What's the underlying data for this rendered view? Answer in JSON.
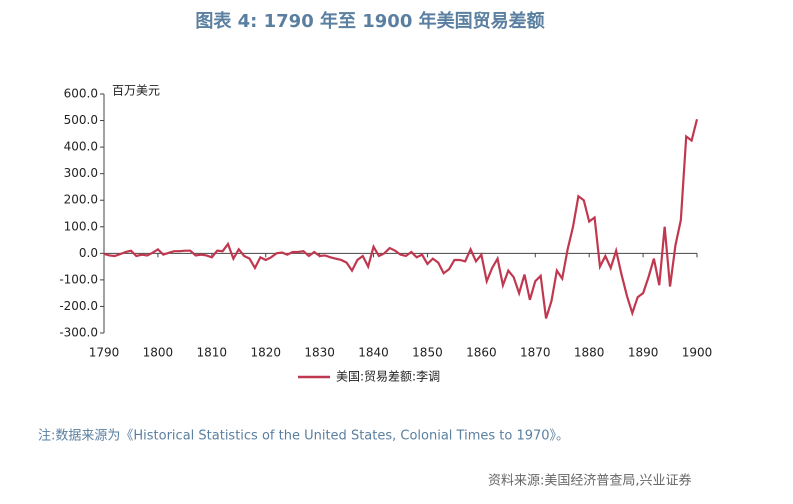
{
  "chart_data": {
    "type": "line",
    "title": "图表 4:  1790 年至 1900 年美国贸易差额",
    "y_label": "百万美元",
    "note": "注:数据来源为《Historical Statistics of the United States, Colonial Times to 1970》。",
    "source": "资料来源:美国经济普查局,兴业证券",
    "x": [
      1790,
      1791,
      1792,
      1793,
      1794,
      1795,
      1796,
      1797,
      1798,
      1799,
      1800,
      1801,
      1802,
      1803,
      1804,
      1805,
      1806,
      1807,
      1808,
      1809,
      1810,
      1811,
      1812,
      1813,
      1814,
      1815,
      1816,
      1817,
      1818,
      1819,
      1820,
      1821,
      1822,
      1823,
      1824,
      1825,
      1826,
      1827,
      1828,
      1829,
      1830,
      1831,
      1832,
      1833,
      1834,
      1835,
      1836,
      1837,
      1838,
      1839,
      1840,
      1841,
      1842,
      1843,
      1844,
      1845,
      1846,
      1847,
      1848,
      1849,
      1850,
      1851,
      1852,
      1853,
      1854,
      1855,
      1856,
      1857,
      1858,
      1859,
      1860,
      1861,
      1862,
      1863,
      1864,
      1865,
      1866,
      1867,
      1868,
      1869,
      1870,
      1871,
      1872,
      1873,
      1874,
      1875,
      1876,
      1877,
      1878,
      1879,
      1880,
      1881,
      1882,
      1883,
      1884,
      1885,
      1886,
      1887,
      1888,
      1889,
      1890,
      1891,
      1892,
      1893,
      1894,
      1895,
      1896,
      1897,
      1898,
      1899,
      1900
    ],
    "series": [
      {
        "name": "美国:贸易差额:李调",
        "color": "#c0384f",
        "values": [
          -2,
          -8,
          -10,
          -3,
          5,
          10,
          -10,
          -5,
          -8,
          2,
          15,
          -5,
          2,
          8,
          8,
          10,
          10,
          -8,
          -5,
          -8,
          -15,
          10,
          8,
          35,
          -20,
          15,
          -10,
          -20,
          -55,
          -15,
          -25,
          -15,
          0,
          3,
          -5,
          5,
          5,
          8,
          -10,
          5,
          -10,
          -8,
          -15,
          -20,
          -25,
          -35,
          -65,
          -25,
          -10,
          -50,
          25,
          -10,
          0,
          20,
          10,
          -5,
          -10,
          5,
          -15,
          -5,
          -40,
          -20,
          -35,
          -75,
          -60,
          -25,
          -25,
          -30,
          15,
          -30,
          -5,
          -105,
          -55,
          -20,
          -120,
          -65,
          -90,
          -150,
          -80,
          -175,
          -105,
          -85,
          -245,
          -180,
          -65,
          -95,
          15,
          100,
          215,
          200,
          120,
          135,
          -50,
          -10,
          -55,
          10,
          -80,
          -160,
          -225,
          -165,
          -150,
          -90,
          -20,
          -120,
          100,
          -125,
          30,
          125,
          440,
          425,
          505
        ]
      }
    ],
    "xlim": [
      1790,
      1900
    ],
    "xticks": [
      1790,
      1800,
      1810,
      1820,
      1830,
      1840,
      1850,
      1860,
      1870,
      1880,
      1890,
      1900
    ],
    "ylim": [
      -300,
      600
    ],
    "yticks": [
      {
        "value": 600,
        "label": "600.0"
      },
      {
        "value": 500,
        "label": "500.0"
      },
      {
        "value": 400,
        "label": "400.0"
      },
      {
        "value": 300,
        "label": "300.0"
      },
      {
        "value": 200,
        "label": "200.0"
      },
      {
        "value": 100,
        "label": "100.0"
      },
      {
        "value": 0,
        "label": "0.0"
      },
      {
        "value": -100,
        "label": "-100.0"
      },
      {
        "value": -200,
        "label": "-200.0"
      },
      {
        "value": -300,
        "label": "-300.0"
      }
    ],
    "grid": false
  }
}
